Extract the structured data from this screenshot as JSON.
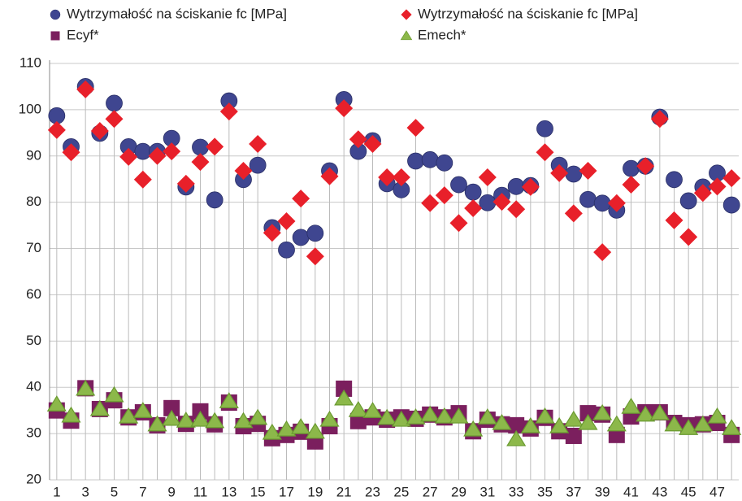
{
  "chart_data": {
    "type": "scatter",
    "categories": [
      "1",
      null,
      "3",
      null,
      "5",
      null,
      "7",
      null,
      "9",
      null,
      "11",
      null,
      "13",
      null,
      "15",
      null,
      "17",
      null,
      "19",
      null,
      "21",
      null,
      "23",
      null,
      "25",
      null,
      "27",
      null,
      "29",
      null,
      "31",
      null,
      "33",
      null,
      "35",
      null,
      "37",
      null,
      "39",
      null,
      "41",
      null,
      "43",
      null,
      "45",
      null,
      "47",
      null
    ],
    "ylim": [
      20,
      110
    ],
    "yticks": [
      20,
      30,
      40,
      50,
      60,
      70,
      80,
      90,
      100,
      110
    ],
    "grid": true,
    "drop_lines": true,
    "series": [
      {
        "name": "Wytrzymałość na ściskanie fc [MPa]",
        "color": "#3f4690",
        "marker": "circle",
        "values": [
          98.7,
          92,
          105,
          94.9,
          101.4,
          92,
          91,
          91,
          93.8,
          83.3,
          91.9,
          80.5,
          101.9,
          84.9,
          88,
          74.5,
          69.7,
          72.4,
          73.3,
          86.8,
          102.2,
          91,
          93.3,
          84,
          82.7,
          88.9,
          89.2,
          88.5,
          83.8,
          82.2,
          79.9,
          81.5,
          83.4,
          83.6,
          95.9,
          88,
          86.1,
          80.6,
          79.8,
          78.3,
          87.3,
          87.8,
          98.4,
          84.9,
          80.3,
          83.3,
          86.3,
          79.4
        ]
      },
      {
        "name": "Wytrzymałość na ściskanie fc [MPa]",
        "color": "#e8202a",
        "marker": "diamond",
        "values": [
          95.6,
          90.8,
          104.4,
          95.4,
          98,
          89.8,
          84.9,
          90,
          91,
          84,
          88.7,
          92,
          99.6,
          86.8,
          92.6,
          73.4,
          75.9,
          80.8,
          68.3,
          85.6,
          100.3,
          93.6,
          92.6,
          85.4,
          85.4,
          96.1,
          79.8,
          81.5,
          75.5,
          78.7,
          85.4,
          80.1,
          78.5,
          83.3,
          90.8,
          86.3,
          77.6,
          86.8,
          69.2,
          79.8,
          83.8,
          87.8,
          98,
          76.1,
          72.5,
          82,
          83.4,
          85.2
        ]
      },
      {
        "name": "Ecyf*",
        "color": "#7b1f5e",
        "marker": "square",
        "values": [
          35,
          32.8,
          39.8,
          35.3,
          37.2,
          33.5,
          34.6,
          31.8,
          35.5,
          32.1,
          34.8,
          32,
          36.7,
          31.6,
          32.1,
          29,
          29.7,
          30.4,
          28.3,
          31.6,
          39.7,
          32.7,
          33.5,
          33,
          33.5,
          33.2,
          34.1,
          33.5,
          34.4,
          30.5,
          33,
          32,
          31.8,
          31.1,
          33.4,
          30.5,
          29.5,
          34.4,
          34.1,
          29.7,
          33.7,
          34.6,
          34.6,
          32.3,
          31.8,
          32,
          32.3,
          29.7
        ]
      },
      {
        "name": "Emech*",
        "color": "#8cb84a",
        "marker": "triangle",
        "values": [
          36.3,
          33.9,
          39.7,
          35.3,
          38.3,
          33.7,
          34.9,
          32,
          33.2,
          32.8,
          33,
          32.7,
          37,
          32.7,
          33.4,
          30.2,
          30.9,
          31.4,
          30.4,
          33,
          37.6,
          35.1,
          34.9,
          33.4,
          33,
          33.5,
          34.1,
          33.7,
          33.7,
          30.9,
          33.5,
          32.3,
          28.8,
          31.6,
          33.7,
          31.6,
          33,
          32.3,
          34.4,
          32,
          35.8,
          34.1,
          34.4,
          32,
          31.2,
          32,
          33.7,
          31.2
        ]
      }
    ]
  }
}
